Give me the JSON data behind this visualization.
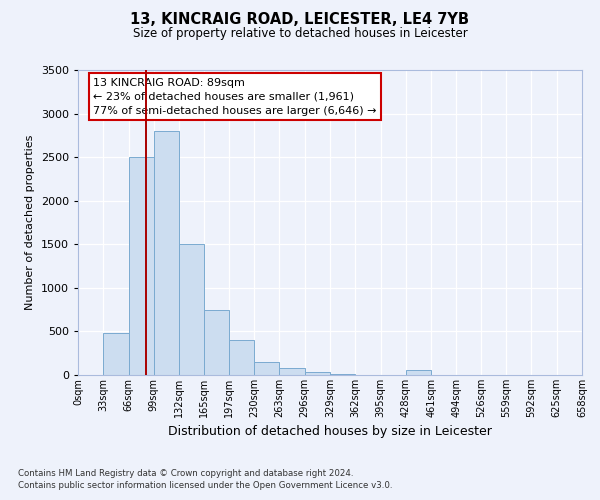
{
  "title_line1": "13, KINCRAIG ROAD, LEICESTER, LE4 7YB",
  "title_line2": "Size of property relative to detached houses in Leicester",
  "xlabel": "Distribution of detached houses by size in Leicester",
  "ylabel": "Number of detached properties",
  "bin_edges": [
    0,
    33,
    66,
    99,
    132,
    165,
    197,
    230,
    263,
    296,
    329,
    362,
    395,
    428,
    461,
    494,
    526,
    559,
    592,
    625,
    658
  ],
  "bin_labels": [
    "0sqm",
    "33sqm",
    "66sqm",
    "99sqm",
    "132sqm",
    "165sqm",
    "197sqm",
    "230sqm",
    "263sqm",
    "296sqm",
    "329sqm",
    "362sqm",
    "395sqm",
    "428sqm",
    "461sqm",
    "494sqm",
    "526sqm",
    "559sqm",
    "592sqm",
    "625sqm",
    "658sqm"
  ],
  "bar_heights": [
    5,
    480,
    2500,
    2800,
    1500,
    750,
    400,
    150,
    80,
    30,
    10,
    5,
    2,
    60,
    5,
    2,
    1,
    1,
    1,
    1
  ],
  "bar_face_color": "#ccddf0",
  "bar_edge_color": "#7aaad0",
  "vline_x": 89,
  "vline_color": "#aa0000",
  "ylim": [
    0,
    3500
  ],
  "yticks": [
    0,
    500,
    1000,
    1500,
    2000,
    2500,
    3000,
    3500
  ],
  "annotation_text_line1": "13 KINCRAIG ROAD: 89sqm",
  "annotation_text_line2": "← 23% of detached houses are smaller (1,961)",
  "annotation_text_line3": "77% of semi-detached houses are larger (6,646) →",
  "footnote1": "Contains HM Land Registry data © Crown copyright and database right 2024.",
  "footnote2": "Contains public sector information licensed under the Open Government Licence v3.0.",
  "bg_color": "#eef2fb",
  "grid_color": "#ffffff",
  "spine_color": "#aabbdd"
}
